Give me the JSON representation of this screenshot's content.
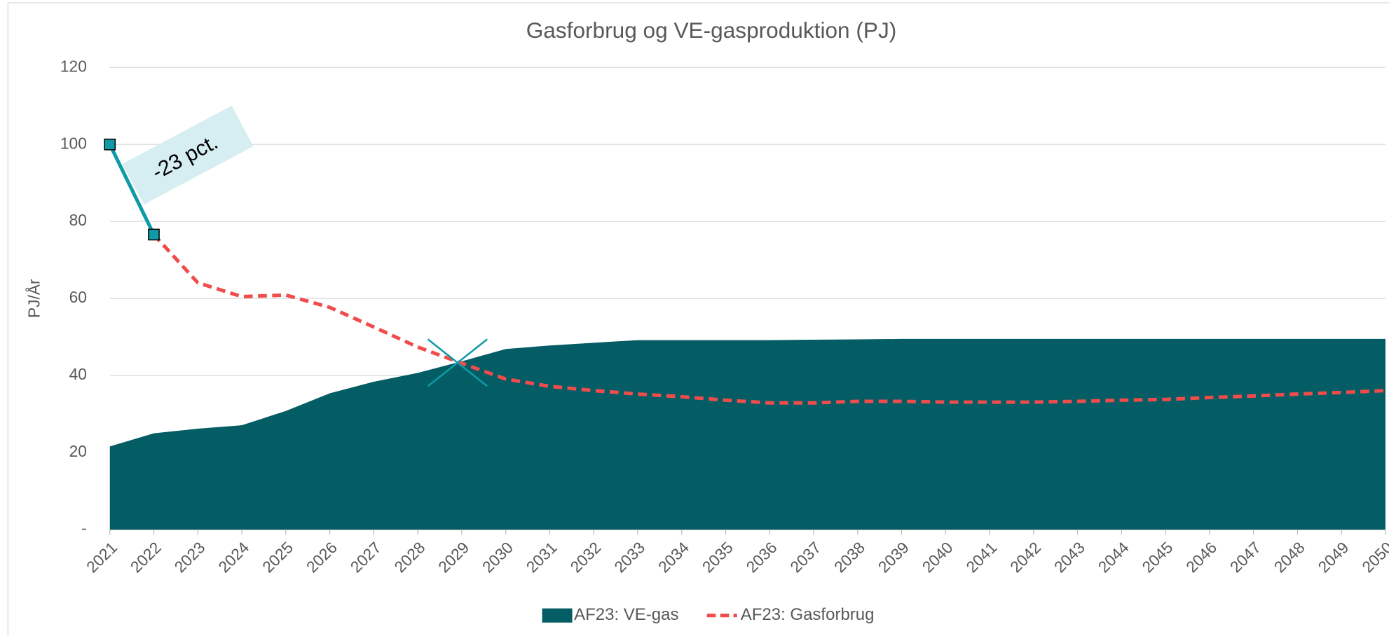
{
  "chart_data": {
    "type": "area-line",
    "title": "Gasforbrug og VE-gasproduktion (PJ)",
    "y_label": "PJ/År",
    "categories": [
      "2021",
      "2022",
      "2023",
      "2024",
      "2025",
      "2026",
      "2027",
      "2028",
      "2029",
      "2030",
      "2031",
      "2032",
      "2033",
      "2034",
      "2035",
      "2036",
      "2037",
      "2038",
      "2039",
      "2040",
      "2041",
      "2042",
      "2043",
      "2044",
      "2045",
      "2046",
      "2047",
      "2048",
      "2049",
      "2050"
    ],
    "series": [
      {
        "name": "AF23: VE-gas",
        "type": "area",
        "color": "#045c64",
        "values": [
          21.6,
          25,
          26.2,
          27.1,
          30.8,
          35.4,
          38.4,
          40.7,
          43.7,
          46.9,
          47.8,
          48.5,
          49.2,
          49.2,
          49.2,
          49.2,
          49.3,
          49.4,
          49.5,
          49.5,
          49.5,
          49.5,
          49.5,
          49.5,
          49.5,
          49.5,
          49.5,
          49.5,
          49.5,
          49.5
        ]
      },
      {
        "name": "AF23: Gasforbrug",
        "type": "line",
        "color": "#f04c4c",
        "highlight_color": "#0e9aa7",
        "values": [
          100,
          76.6,
          64.1,
          60.5,
          60.9,
          57.7,
          52.6,
          47.4,
          43.2,
          39.1,
          37.2,
          36.1,
          35.2,
          34.5,
          33.6,
          32.9,
          32.9,
          33.3,
          33.3,
          33.1,
          33.1,
          33.1,
          33.3,
          33.6,
          33.8,
          34.3,
          34.7,
          35.2,
          35.6,
          36.1
        ]
      }
    ],
    "annotations": [
      {
        "text": "-23 pct."
      }
    ],
    "ylim": [
      0,
      120
    ],
    "yticks": [
      {
        "value": 0,
        "label": "-"
      },
      20,
      40,
      60,
      80,
      100,
      120
    ],
    "grid": true,
    "legend": "bottom"
  }
}
